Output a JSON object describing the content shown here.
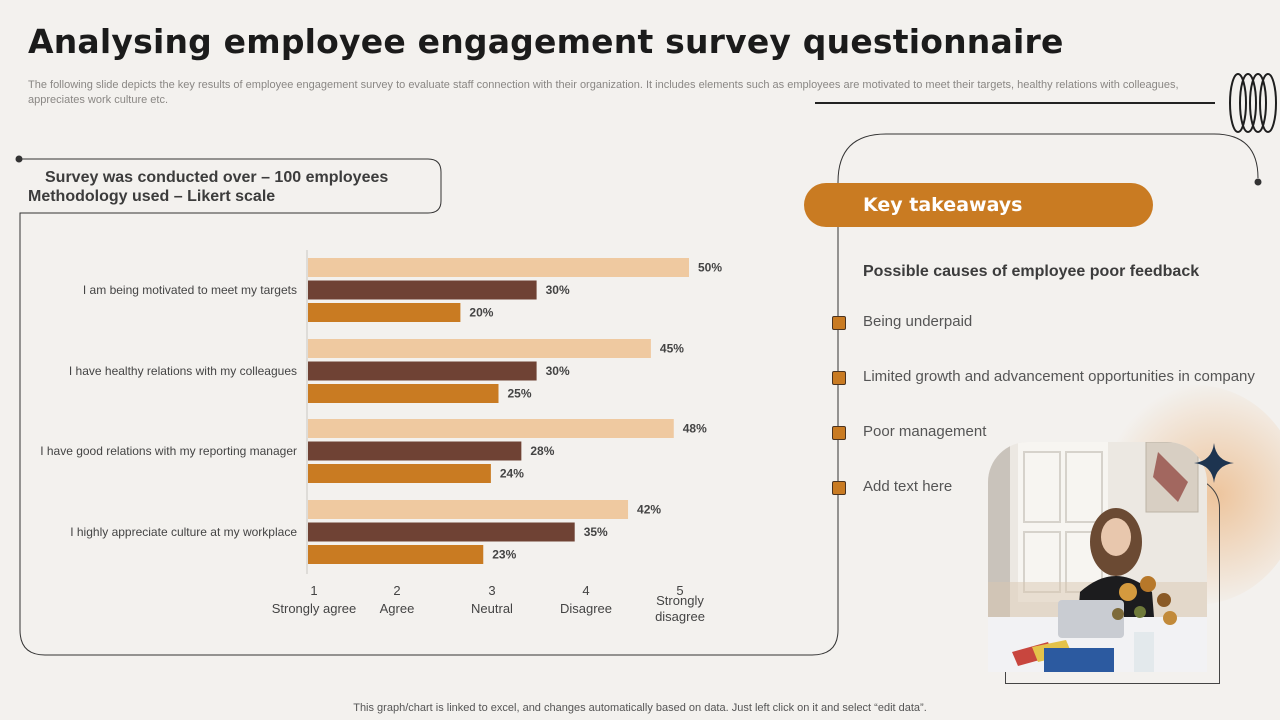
{
  "header": {
    "title": "Analysing employee engagement survey questionnaire",
    "subtitle": "The following slide depicts the key results of employee engagement survey to  evaluate staff connection with their organization. It includes elements such as employees are motivated to meet their targets, healthy relations with colleagues, appreciates work culture etc."
  },
  "survey": {
    "line1": "Survey was conducted over – 100 employees",
    "line2": "Methodology used – Likert scale"
  },
  "chart_data": {
    "type": "bar",
    "orientation": "horizontal",
    "categories": [
      "I am being motivated to meet my targets",
      "I have healthy relations with my colleagues",
      "I have good relations with my reporting manager",
      "I highly appreciate culture at my workplace"
    ],
    "series": [
      {
        "values": [
          50,
          45,
          48,
          42
        ],
        "labels": [
          "50%",
          "45%",
          "48%",
          "42%"
        ]
      },
      {
        "values": [
          30,
          30,
          28,
          35
        ],
        "labels": [
          "30%",
          "30%",
          "28%",
          "35%"
        ]
      },
      {
        "values": [
          20,
          25,
          24,
          23
        ],
        "labels": [
          "20%",
          "25%",
          "24%",
          "23%"
        ]
      }
    ],
    "colors": [
      "#efc9a0",
      "#6f4234",
      "#c97b22"
    ],
    "x_axis": {
      "ticks": [
        {
          "num": "1",
          "label": [
            "Strongly agree"
          ]
        },
        {
          "num": "2",
          "label": [
            "Agree"
          ]
        },
        {
          "num": "3",
          "label": [
            "Neutral"
          ]
        },
        {
          "num": "4",
          "label": [
            "Disagree"
          ]
        },
        {
          "num": "5",
          "label": [
            "Strongly",
            "disagree"
          ]
        }
      ]
    }
  },
  "takeaways": {
    "heading": "Key takeaways",
    "subheading": "Possible causes of employee poor feedback",
    "items": [
      "Being underpaid",
      "Limited growth and advancement opportunities in company",
      "Poor management",
      "Add text here"
    ]
  },
  "footnote": "This graph/chart is linked to excel,  and changes automatically based on data. Just left click on it and select “edit data”.",
  "colors": {
    "accent": "#c97b22",
    "dark": "#6f4234",
    "light": "#efc9a0",
    "star": "#1d3450"
  }
}
